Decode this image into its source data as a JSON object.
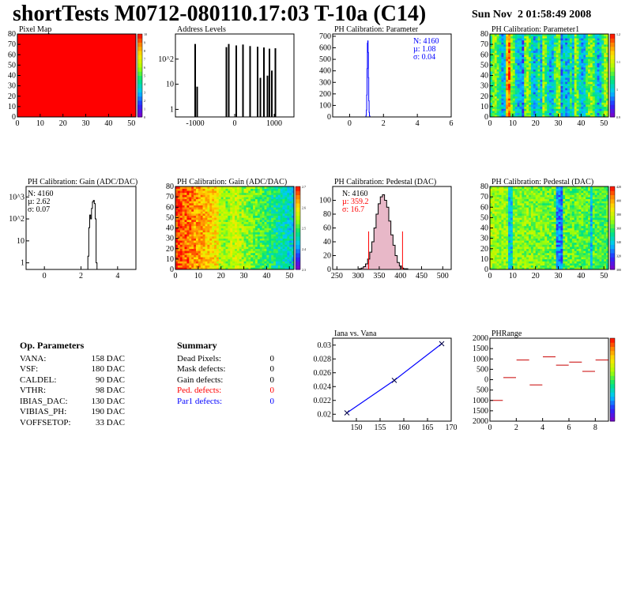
{
  "header": {
    "title": "shortTests M0712-080110.17:03 T-10a (C14)",
    "date": "Sun Nov  2 01:58:49 2008"
  },
  "colors": {
    "hist_black": "#000000",
    "fit_blue": "#0000ff",
    "fit_red": "#ff0000",
    "fill_pink": "#e8b8c8",
    "pixel_red": "#ff0000"
  },
  "op_parameters": {
    "title": "Op. Parameters",
    "rows": [
      {
        "name": "VANA:",
        "value": "158 DAC"
      },
      {
        "name": "VSF:",
        "value": "180 DAC"
      },
      {
        "name": "CALDEL:",
        "value": "90 DAC"
      },
      {
        "name": "VTHR:",
        "value": "98 DAC"
      },
      {
        "name": "IBIAS_DAC:",
        "value": "130 DAC"
      },
      {
        "name": "VIBIAS_PH:",
        "value": "190 DAC"
      },
      {
        "name": "VOFFSETOP:",
        "value": "33 DAC"
      }
    ]
  },
  "summary": {
    "title": "Summary",
    "rows": [
      {
        "name": "Dead Pixels:",
        "value": "0",
        "color": "#000000"
      },
      {
        "name": "Mask defects:",
        "value": "0",
        "color": "#000000"
      },
      {
        "name": "Gain defects:",
        "value": "0",
        "color": "#000000"
      },
      {
        "name": "Ped. defects:",
        "value": "0",
        "color": "#ff0000"
      },
      {
        "name": "Par1 defects:",
        "value": "0",
        "color": "#0000ff"
      }
    ]
  },
  "chart_data": [
    {
      "id": "pixel-map",
      "type": "heatmap",
      "title": "Pixel Map",
      "xlim": [
        0,
        52
      ],
      "ylim": [
        0,
        80
      ],
      "xticks": [
        "0",
        "10",
        "20",
        "30",
        "40",
        "50"
      ],
      "yticks": [
        "0",
        "10",
        "20",
        "30",
        "40",
        "50",
        "60",
        "70",
        "80"
      ],
      "uniform_value": 10,
      "uniform_color": "#ff0000",
      "zticks": [
        "0",
        "1",
        "2",
        "3",
        "4",
        "5",
        "6",
        "7",
        "8",
        "9",
        "10"
      ]
    },
    {
      "id": "address-levels",
      "type": "bar",
      "title": "Address Levels",
      "ylog": true,
      "xlim": [
        -1500,
        1500
      ],
      "ylim": [
        0.5,
        1000
      ],
      "xticks": [
        "-1000",
        "0",
        "1000"
      ],
      "yticks": [
        "1",
        "10",
        "10^2"
      ],
      "peaks": [
        {
          "x": -1000,
          "height": 400
        },
        {
          "x": -950,
          "height": 8
        },
        {
          "x": -210,
          "height": 300
        },
        {
          "x": -150,
          "height": 400
        },
        {
          "x": 40,
          "height": 350
        },
        {
          "x": 210,
          "height": 380
        },
        {
          "x": 390,
          "height": 330
        },
        {
          "x": 580,
          "height": 310
        },
        {
          "x": 650,
          "height": 18
        },
        {
          "x": 740,
          "height": 290
        },
        {
          "x": 830,
          "height": 22
        },
        {
          "x": 880,
          "height": 260
        },
        {
          "x": 940,
          "height": 35
        },
        {
          "x": 1030,
          "height": 270
        }
      ]
    },
    {
      "id": "ph-calib-parameter",
      "type": "bar",
      "title": "PH Calibration: Parameter",
      "xlim": [
        -1,
        6
      ],
      "ylim": [
        0,
        720
      ],
      "xticks": [
        "0",
        "2",
        "4",
        "6"
      ],
      "yticks": [
        "0",
        "100",
        "200",
        "300",
        "400",
        "500",
        "600",
        "700"
      ],
      "stats": {
        "n": "N: 4160",
        "mu": "µ: 1.08",
        "sigma": "σ: 0.04"
      },
      "bins_x": [
        0.96,
        0.98,
        1.0,
        1.02,
        1.04,
        1.06,
        1.08,
        1.1,
        1.12,
        1.14,
        1.16,
        1.18,
        1.2
      ],
      "bins_y": [
        2,
        15,
        60,
        190,
        420,
        640,
        660,
        560,
        340,
        140,
        40,
        10,
        2
      ]
    },
    {
      "id": "ph-calib-parameter1",
      "type": "heatmap",
      "title": "PH Calibration: Parameter1",
      "xlim": [
        0,
        52
      ],
      "ylim": [
        0,
        80
      ],
      "xticks": [
        "0",
        "10",
        "20",
        "30",
        "40",
        "50"
      ],
      "yticks": [
        "0",
        "10",
        "20",
        "30",
        "40",
        "50",
        "60",
        "70",
        "80"
      ],
      "zticks": [
        "0.9",
        "1",
        "1.1",
        "1.2"
      ]
    },
    {
      "id": "ph-calib-gain",
      "type": "bar",
      "title": "PH Calibration: Gain (ADC/DAC)",
      "ylog": true,
      "xlim": [
        -1,
        5
      ],
      "ylim": [
        0.5,
        3000
      ],
      "xticks": [
        "0",
        "2",
        "4"
      ],
      "yticks": [
        "1",
        "10",
        "10^2",
        "10^3"
      ],
      "stats": {
        "n": "N: 4160",
        "mu": "µ: 2.62",
        "sigma": "σ: 0.07"
      },
      "bins_x": [
        2.4,
        2.45,
        2.5,
        2.55,
        2.6,
        2.65,
        2.7,
        2.75,
        2.8,
        2.85
      ],
      "bins_y": [
        2,
        40,
        150,
        100,
        300,
        600,
        700,
        500,
        100,
        1
      ]
    },
    {
      "id": "gain-map",
      "type": "heatmap",
      "title": "PH Calibration: Gain (ADC/DAC)",
      "xlim": [
        0,
        52
      ],
      "ylim": [
        0,
        80
      ],
      "xticks": [
        "0",
        "10",
        "20",
        "30",
        "40",
        "50"
      ],
      "yticks": [
        "0",
        "10",
        "20",
        "30",
        "40",
        "50",
        "60",
        "70",
        "80"
      ],
      "zticks": [
        "2.3",
        "2.4",
        "2.5",
        "2.6",
        "2.7"
      ]
    },
    {
      "id": "ph-calib-pedestal",
      "type": "bar",
      "title": "PH Calibration: Pedestal (DAC)",
      "xlim": [
        240,
        520
      ],
      "ylim": [
        0,
        120
      ],
      "xticks": [
        "250",
        "300",
        "350",
        "400",
        "450",
        "500"
      ],
      "yticks": [
        "0",
        "20",
        "40",
        "60",
        "80",
        "100"
      ],
      "stats": {
        "n": "N: 4160",
        "mu": "µ: 359.2",
        "sigma": "σ: 16.7"
      },
      "cut_lines": [
        {
          "x": 325,
          "y": 55
        },
        {
          "x": 405,
          "y": 55
        }
      ],
      "bins_x": [
        305,
        310,
        315,
        320,
        325,
        330,
        335,
        340,
        345,
        350,
        355,
        360,
        365,
        370,
        375,
        380,
        385,
        390,
        395,
        400,
        405,
        410,
        415
      ],
      "bins_y": [
        1,
        2,
        4,
        8,
        15,
        25,
        40,
        60,
        80,
        95,
        105,
        108,
        100,
        90,
        70,
        50,
        35,
        20,
        10,
        5,
        2,
        1,
        1
      ]
    },
    {
      "id": "pedestal-map",
      "type": "heatmap",
      "title": "PH Calibration: Pedestal (DAC)",
      "xlim": [
        0,
        52
      ],
      "ylim": [
        0,
        80
      ],
      "xticks": [
        "0",
        "10",
        "20",
        "30",
        "40",
        "50"
      ],
      "yticks": [
        "0",
        "10",
        "20",
        "30",
        "40",
        "50",
        "60",
        "70",
        "80"
      ],
      "zticks": [
        "300",
        "320",
        "340",
        "360",
        "380",
        "400",
        "420"
      ]
    },
    {
      "id": "iana-vana",
      "type": "line",
      "title": "Iana vs. Vana",
      "xlim": [
        145,
        170
      ],
      "ylim": [
        0.019,
        0.031
      ],
      "xticks": [
        "150",
        "155",
        "160",
        "165",
        "170"
      ],
      "yticks": [
        "0.02",
        "0.022",
        "0.024",
        "0.026",
        "0.028",
        "0.03"
      ],
      "x": [
        148,
        158,
        168
      ],
      "y": [
        0.0202,
        0.0249,
        0.0302
      ]
    },
    {
      "id": "phrange",
      "type": "scatter",
      "title": "PHRange",
      "xlim": [
        0,
        9
      ],
      "ylim": [
        -2000,
        2000
      ],
      "xticks": [
        "0",
        "2",
        "4",
        "6",
        "8"
      ],
      "yticks": [
        "2000",
        "1500",
        "1000",
        "500",
        "0",
        "500",
        "1000",
        "1500",
        "2000"
      ],
      "x": [
        0.5,
        1.5,
        2.5,
        3.5,
        4.5,
        5.5,
        6.5,
        7.5,
        8.5
      ],
      "y": [
        -1000,
        100,
        950,
        -250,
        1100,
        700,
        850,
        400,
        950
      ]
    }
  ]
}
